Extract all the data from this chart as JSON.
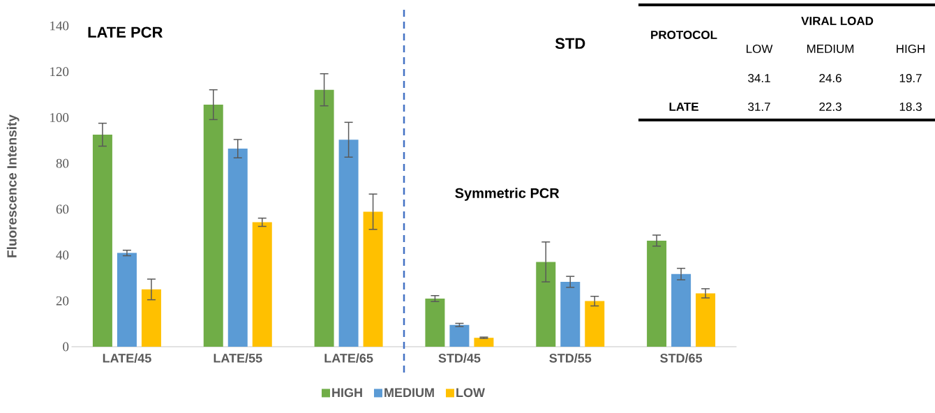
{
  "chart_data": [
    {
      "type": "bar",
      "ylabel": "Fluorescence Intensity",
      "categories": [
        "LATE/45",
        "LATE/55",
        "LATE/65",
        "STD/45",
        "STD/55",
        "STD/65"
      ],
      "series": [
        {
          "name": "HIGH",
          "color": "#70ad47",
          "values": [
            92.5,
            105.6,
            112.1,
            21,
            37,
            46.3
          ],
          "errors": [
            5,
            6.5,
            7,
            1.3,
            8.7,
            2.4
          ]
        },
        {
          "name": "MEDIUM",
          "color": "#5b9bd5",
          "values": [
            40.9,
            86.4,
            90.3,
            9.5,
            28.3,
            31.7
          ],
          "errors": [
            1.2,
            4,
            7.6,
            0.7,
            2.4,
            2.5
          ]
        },
        {
          "name": "LOW",
          "color": "#ffc000",
          "values": [
            25,
            54.3,
            58.9,
            3.9,
            19.9,
            23.3
          ],
          "errors": [
            4.5,
            1.8,
            7.7,
            0.3,
            2.1,
            2
          ]
        }
      ],
      "ylim": [
        0,
        140
      ],
      "yticks": [
        0,
        20,
        40,
        60,
        80,
        100,
        120,
        140
      ],
      "annotations": [
        "LATE PCR",
        "STD",
        "Symmetric PCR"
      ],
      "legend": "bottom"
    },
    {
      "type": "other",
      "title": "VIRAL LOAD",
      "ylabel": "PROTOCOL",
      "categories": [
        "LOW",
        "MEDIUM",
        "HIGH"
      ],
      "series": [
        {
          "values": [
            34.1,
            24.6,
            19.7
          ]
        },
        {
          "name": "LATE",
          "values": [
            31.7,
            22.3,
            18.3
          ]
        }
      ],
      "data_labels": true
    }
  ]
}
